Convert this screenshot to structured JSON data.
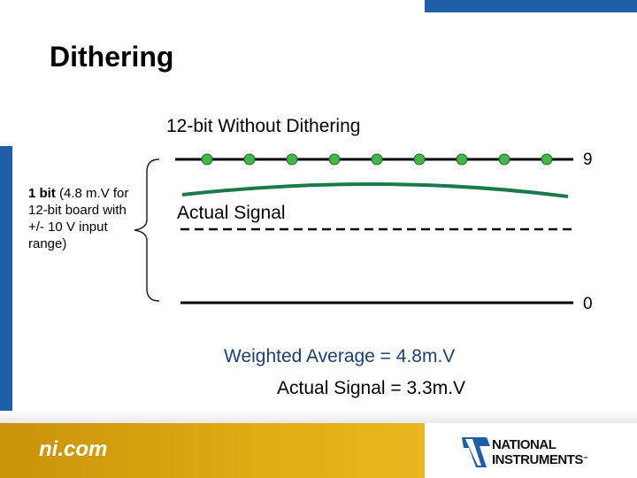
{
  "slide": {
    "title": "Dithering",
    "subtitle": "12-bit Without Dithering",
    "bit_note_bold": "1 bit",
    "bit_note_rest": " (4.8 m.V for 12-bit board with +/- 10 V input range)",
    "level_top": "9",
    "level_bottom": "0",
    "signal_label": "Actual Signal",
    "weighted_average": "Weighted Average = 4.8m.V",
    "actual_value": "Actual Signal = 3.3m.V"
  },
  "footer": {
    "site": "ni.com",
    "brand_line1": "NATIONAL",
    "brand_line2": "INSTRUMENTS",
    "trademark": "™"
  },
  "colors": {
    "accent_blue": "#1f5ea8",
    "footer_gold": "#e3ae14",
    "signal_green": "#1a7a4a",
    "dot_green": "#44b54a",
    "weighted_text": "#1a3f7a"
  },
  "sample_points": 9
}
